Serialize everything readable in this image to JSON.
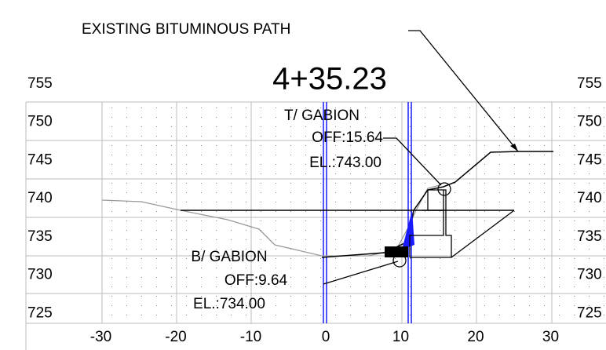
{
  "header": {
    "station": "4+35.23",
    "callout_path": "EXISTING BITUMINOUS PATH"
  },
  "annotations": {
    "top_gabion": {
      "label": "T/ GABION",
      "offset": "OFF:15.64",
      "elevation": "EL.:743.00"
    },
    "bottom_gabion": {
      "label": "B/ GABION",
      "offset": "OFF:9.64",
      "elevation": "EL.:734.00"
    }
  },
  "elevation_labels_left": [
    755,
    750,
    745,
    740,
    735,
    730,
    725
  ],
  "elevation_labels_right": [
    755,
    750,
    745,
    740,
    735,
    730,
    725
  ],
  "offset_labels": [
    -30,
    -20,
    -10,
    0,
    10,
    20,
    30
  ]
}
